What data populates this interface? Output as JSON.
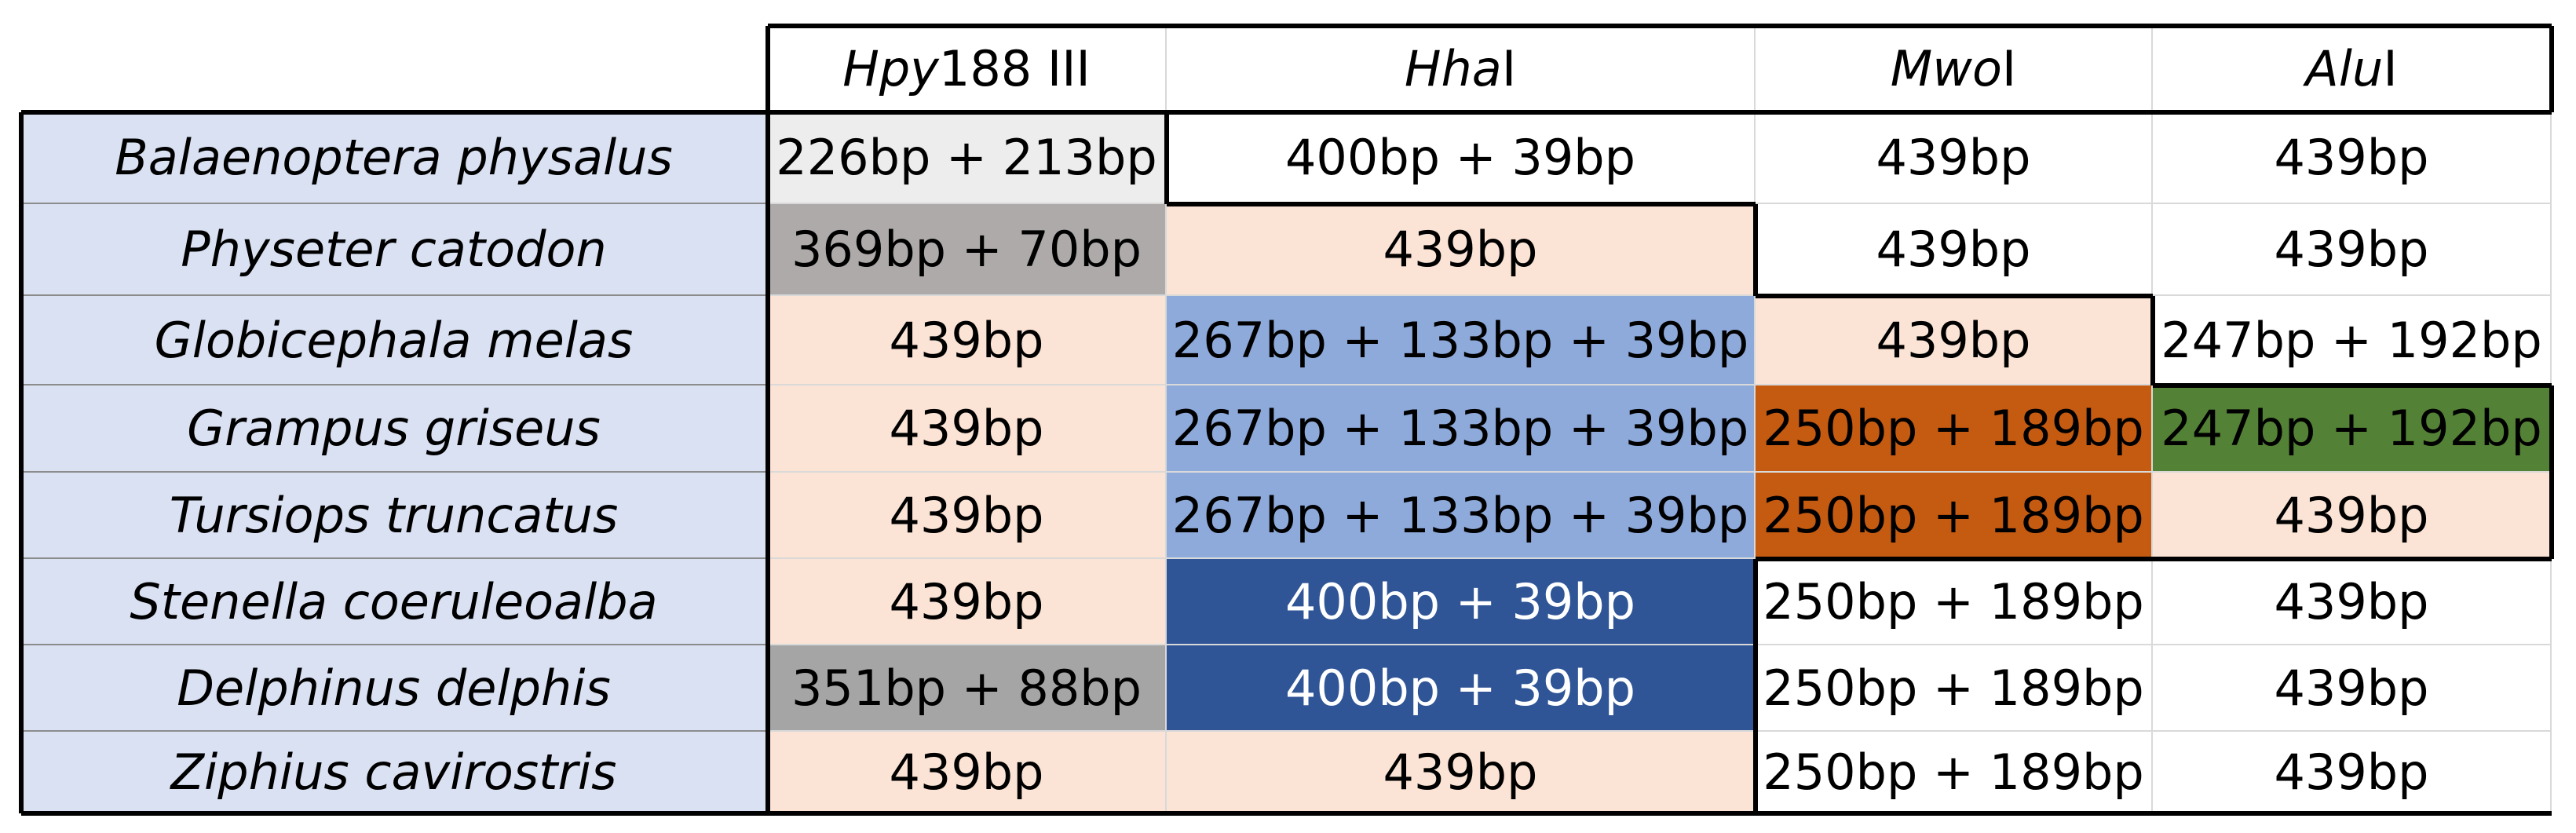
{
  "headers": [
    {
      "italic": "Hpy",
      "rest": " 188 III"
    },
    {
      "italic": "Hha",
      "rest": " I"
    },
    {
      "italic": "Mwo",
      "rest": " I"
    },
    {
      "italic": "Alu",
      "rest": " I"
    }
  ],
  "rows": [
    {
      "species": "Balaenoptera physalus",
      "cells": [
        "226bp + 213bp",
        "400bp + 39bp",
        "439bp",
        "439bp"
      ]
    },
    {
      "species": "Physeter catodon",
      "cells": [
        "369bp + 70bp",
        "439bp",
        "439bp",
        "439bp"
      ]
    },
    {
      "species": "Globicephala melas",
      "cells": [
        "439bp",
        "267bp + 133bp + 39bp",
        "439bp",
        "247bp + 192bp"
      ]
    },
    {
      "species": "Grampus griseus",
      "cells": [
        "439bp",
        "267bp + 133bp + 39bp",
        "250bp + 189bp",
        "247bp + 192bp"
      ]
    },
    {
      "species": "Tursiops truncatus",
      "cells": [
        "439bp",
        "267bp + 133bp + 39bp",
        "250bp + 189bp",
        "439bp"
      ]
    },
    {
      "species": "Stenella coeruleoalba",
      "cells": [
        "439bp",
        "400bp + 39bp",
        "250bp + 189bp",
        "439bp"
      ]
    },
    {
      "species": "Delphinus delphis",
      "cells": [
        "351bp + 88bp",
        "400bp + 39bp",
        "250bp + 189bp",
        "439bp"
      ]
    },
    {
      "species": "Ziphius cavirostris",
      "cells": [
        "439bp",
        "439bp",
        "250bp + 189bp",
        "439bp"
      ]
    }
  ],
  "cell_colors": [
    [
      "#ededed",
      "#ffffff",
      "#ffffff",
      "#ffffff"
    ],
    [
      "#aeaaaa",
      "#fbe4d5",
      "#ffffff",
      "#ffffff"
    ],
    [
      "#fbe4d5",
      "#8eaadb",
      "#fbe4d5",
      "#ffffff"
    ],
    [
      "#fbe4d5",
      "#8eaadb",
      "#c55a11",
      "#538135"
    ],
    [
      "#fbe4d5",
      "#8eaadb",
      "#c55a11",
      "#fbe4d5"
    ],
    [
      "#fbe4d5",
      "#2f5597",
      "#ffffff",
      "#ffffff"
    ],
    [
      "#a5a5a5",
      "#2f5597",
      "#ffffff",
      "#ffffff"
    ],
    [
      "#fbe4d5",
      "#fbe4d5",
      "#ffffff",
      "#ffffff"
    ]
  ],
  "text_colors": [
    [
      "#000000",
      "#000000",
      "#000000",
      "#000000"
    ],
    [
      "#000000",
      "#000000",
      "#000000",
      "#000000"
    ],
    [
      "#000000",
      "#000000",
      "#000000",
      "#000000"
    ],
    [
      "#000000",
      "#000000",
      "#000000",
      "#000000"
    ],
    [
      "#000000",
      "#000000",
      "#000000",
      "#000000"
    ],
    [
      "#000000",
      "#ffffff",
      "#000000",
      "#000000"
    ],
    [
      "#000000",
      "#ffffff",
      "#000000",
      "#000000"
    ],
    [
      "#000000",
      "#000000",
      "#000000",
      "#000000"
    ]
  ],
  "species_bg": "#d9e1f2"
}
